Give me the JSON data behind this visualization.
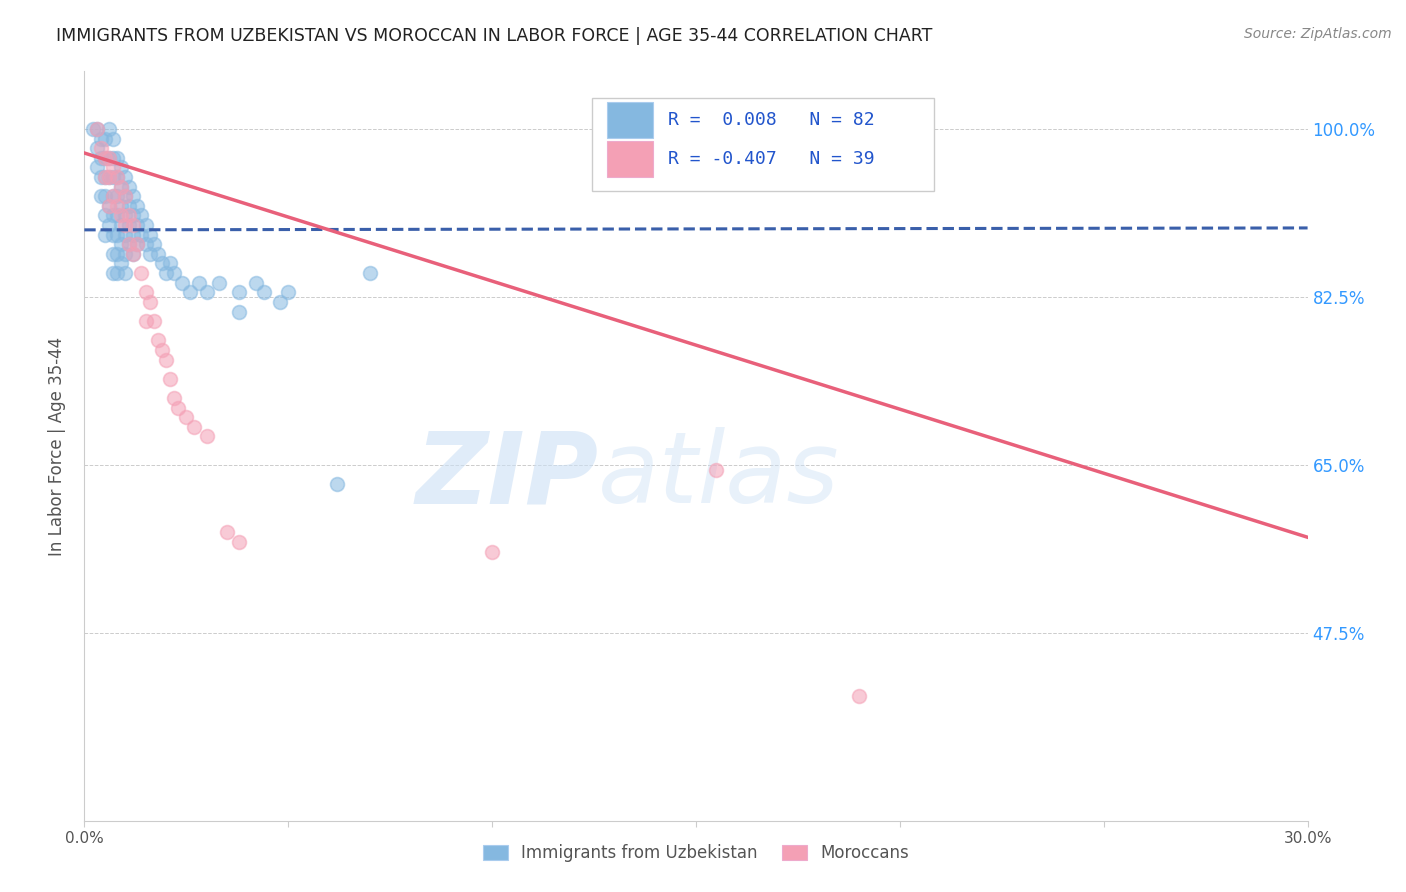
{
  "title": "IMMIGRANTS FROM UZBEKISTAN VS MOROCCAN IN LABOR FORCE | AGE 35-44 CORRELATION CHART",
  "source": "Source: ZipAtlas.com",
  "ylabel_label": "In Labor Force | Age 35-44",
  "y_tick_labels": [
    "100.0%",
    "82.5%",
    "65.0%",
    "47.5%"
  ],
  "y_tick_vals": [
    1.0,
    0.825,
    0.65,
    0.475
  ],
  "x_lim": [
    0.0,
    0.3
  ],
  "y_lim": [
    0.28,
    1.06
  ],
  "legend_blue_r": "R =  0.008",
  "legend_blue_n": "N = 82",
  "legend_pink_r": "R = -0.407",
  "legend_pink_n": "N = 39",
  "legend_label_blue": "Immigrants from Uzbekistan",
  "legend_label_pink": "Moroccans",
  "blue_color": "#85b8e0",
  "pink_color": "#f4a0b5",
  "blue_line_color": "#3a5faa",
  "pink_line_color": "#e8607a",
  "blue_scatter_x": [
    0.002,
    0.003,
    0.003,
    0.003,
    0.004,
    0.004,
    0.004,
    0.004,
    0.005,
    0.005,
    0.005,
    0.005,
    0.005,
    0.005,
    0.006,
    0.006,
    0.006,
    0.006,
    0.006,
    0.007,
    0.007,
    0.007,
    0.007,
    0.007,
    0.007,
    0.007,
    0.007,
    0.008,
    0.008,
    0.008,
    0.008,
    0.008,
    0.008,
    0.008,
    0.009,
    0.009,
    0.009,
    0.009,
    0.009,
    0.009,
    0.01,
    0.01,
    0.01,
    0.01,
    0.01,
    0.01,
    0.011,
    0.011,
    0.011,
    0.011,
    0.012,
    0.012,
    0.012,
    0.012,
    0.013,
    0.013,
    0.013,
    0.014,
    0.014,
    0.015,
    0.015,
    0.016,
    0.016,
    0.017,
    0.018,
    0.019,
    0.02,
    0.021,
    0.022,
    0.024,
    0.026,
    0.028,
    0.03,
    0.033,
    0.038,
    0.038,
    0.042,
    0.044,
    0.048,
    0.05,
    0.062,
    0.07
  ],
  "blue_scatter_y": [
    1.0,
    0.98,
    0.96,
    1.0,
    0.99,
    0.97,
    0.95,
    0.93,
    0.99,
    0.97,
    0.95,
    0.93,
    0.91,
    0.89,
    1.0,
    0.97,
    0.95,
    0.92,
    0.9,
    0.99,
    0.97,
    0.95,
    0.93,
    0.91,
    0.89,
    0.87,
    0.85,
    0.97,
    0.95,
    0.93,
    0.91,
    0.89,
    0.87,
    0.85,
    0.96,
    0.94,
    0.92,
    0.9,
    0.88,
    0.86,
    0.95,
    0.93,
    0.91,
    0.89,
    0.87,
    0.85,
    0.94,
    0.92,
    0.9,
    0.88,
    0.93,
    0.91,
    0.89,
    0.87,
    0.92,
    0.9,
    0.88,
    0.91,
    0.89,
    0.9,
    0.88,
    0.89,
    0.87,
    0.88,
    0.87,
    0.86,
    0.85,
    0.86,
    0.85,
    0.84,
    0.83,
    0.84,
    0.83,
    0.84,
    0.83,
    0.81,
    0.84,
    0.83,
    0.82,
    0.83,
    0.63,
    0.85
  ],
  "pink_scatter_x": [
    0.003,
    0.004,
    0.005,
    0.005,
    0.006,
    0.006,
    0.006,
    0.007,
    0.007,
    0.008,
    0.008,
    0.009,
    0.009,
    0.01,
    0.01,
    0.011,
    0.011,
    0.012,
    0.012,
    0.013,
    0.014,
    0.015,
    0.015,
    0.016,
    0.017,
    0.018,
    0.019,
    0.02,
    0.021,
    0.022,
    0.023,
    0.025,
    0.027,
    0.03,
    0.035,
    0.038,
    0.1,
    0.155,
    0.19
  ],
  "pink_scatter_y": [
    1.0,
    0.98,
    0.97,
    0.95,
    0.97,
    0.95,
    0.92,
    0.96,
    0.93,
    0.95,
    0.92,
    0.94,
    0.91,
    0.93,
    0.9,
    0.91,
    0.88,
    0.9,
    0.87,
    0.88,
    0.85,
    0.83,
    0.8,
    0.82,
    0.8,
    0.78,
    0.77,
    0.76,
    0.74,
    0.72,
    0.71,
    0.7,
    0.69,
    0.68,
    0.58,
    0.57,
    0.56,
    0.645,
    0.41
  ],
  "blue_trendline_x": [
    0.0,
    0.3
  ],
  "blue_trendline_y": [
    0.895,
    0.897
  ],
  "pink_trendline_x": [
    0.0,
    0.3
  ],
  "pink_trendline_y": [
    0.975,
    0.575
  ]
}
